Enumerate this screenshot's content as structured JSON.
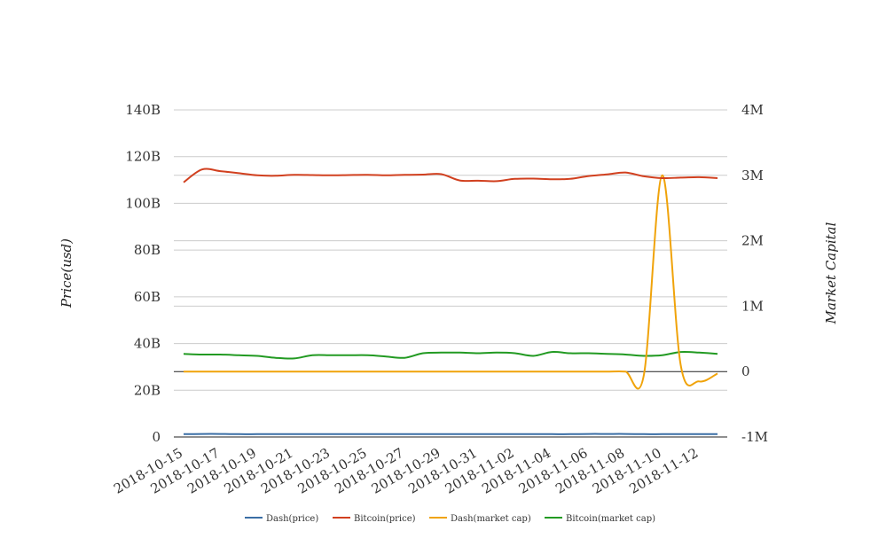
{
  "chart_data": {
    "type": "line",
    "title": "",
    "xlabel": "",
    "ylabel_left": "Price(usd)",
    "ylabel_right": "Market Capital",
    "ylim_left": [
      0,
      140000000000
    ],
    "ylim_right": [
      -1000000,
      4000000
    ],
    "left_ticks": [
      {
        "value": 0,
        "label": "0"
      },
      {
        "value": 20000000000,
        "label": "20B"
      },
      {
        "value": 40000000000,
        "label": "40B"
      },
      {
        "value": 60000000000,
        "label": "60B"
      },
      {
        "value": 80000000000,
        "label": "80B"
      },
      {
        "value": 100000000000,
        "label": "100B"
      },
      {
        "value": 120000000000,
        "label": "120B"
      },
      {
        "value": 140000000000,
        "label": "140B"
      }
    ],
    "right_ticks": [
      {
        "value": -1000000,
        "label": "-1M"
      },
      {
        "value": 0,
        "label": "0"
      },
      {
        "value": 1000000,
        "label": "1M"
      },
      {
        "value": 2000000,
        "label": "2M"
      },
      {
        "value": 3000000,
        "label": "3M"
      },
      {
        "value": 4000000,
        "label": "4M"
      }
    ],
    "x": [
      "2018-10-15",
      "2018-10-16",
      "2018-10-17",
      "2018-10-18",
      "2018-10-19",
      "2018-10-20",
      "2018-10-21",
      "2018-10-22",
      "2018-10-23",
      "2018-10-24",
      "2018-10-25",
      "2018-10-26",
      "2018-10-27",
      "2018-10-28",
      "2018-10-29",
      "2018-10-30",
      "2018-10-31",
      "2018-11-01",
      "2018-11-02",
      "2018-11-03",
      "2018-11-04",
      "2018-11-05",
      "2018-11-06",
      "2018-11-07",
      "2018-11-08",
      "2018-11-09",
      "2018-11-10",
      "2018-11-11",
      "2018-11-12",
      "2018-11-13"
    ],
    "x_tick_labels": [
      "2018-10-15",
      "2018-10-17",
      "2018-10-19",
      "2018-10-21",
      "2018-10-23",
      "2018-10-25",
      "2018-10-27",
      "2018-10-29",
      "2018-10-31",
      "2018-11-02",
      "2018-11-04",
      "2018-11-06",
      "2018-11-08",
      "2018-11-10",
      "2018-11-12"
    ],
    "grid": true,
    "legend_position": "bottom-center",
    "series": [
      {
        "name": "Dash(price)",
        "axis": "left",
        "color": "#3a6ea5",
        "values": [
          1200000000,
          1300000000,
          1300000000,
          1200000000,
          1200000000,
          1200000000,
          1200000000,
          1200000000,
          1200000000,
          1200000000,
          1200000000,
          1200000000,
          1200000000,
          1200000000,
          1200000000,
          1200000000,
          1200000000,
          1200000000,
          1200000000,
          1200000000,
          1200000000,
          1200000000,
          1300000000,
          1300000000,
          1300000000,
          1200000000,
          1200000000,
          1200000000,
          1200000000,
          1200000000
        ]
      },
      {
        "name": "Bitcoin(price)",
        "axis": "left",
        "color": "#d1401f",
        "values": [
          109000000000,
          114500000000,
          113800000000,
          112900000000,
          112000000000,
          111800000000,
          112200000000,
          112100000000,
          112000000000,
          112100000000,
          112200000000,
          112000000000,
          112200000000,
          112300000000,
          112500000000,
          109800000000,
          109700000000,
          109500000000,
          110500000000,
          110600000000,
          110300000000,
          110500000000,
          111700000000,
          112400000000,
          113200000000,
          111600000000,
          110800000000,
          111000000000,
          111200000000,
          110800000000
        ]
      },
      {
        "name": "Dash(market cap)",
        "axis": "right",
        "color": "#f0a30a",
        "values": [
          0,
          0,
          0,
          0,
          0,
          0,
          0,
          0,
          0,
          0,
          0,
          0,
          0,
          0,
          0,
          0,
          0,
          0,
          0,
          0,
          0,
          0,
          0,
          0,
          0,
          -50000,
          3000000,
          100000,
          -150000,
          -30000
        ]
      },
      {
        "name": "Bitcoin(market cap)",
        "axis": "right",
        "color": "#229a22",
        "values": [
          270000,
          260000,
          260000,
          250000,
          240000,
          210000,
          200000,
          250000,
          250000,
          250000,
          250000,
          230000,
          210000,
          280000,
          290000,
          290000,
          280000,
          290000,
          280000,
          240000,
          300000,
          280000,
          280000,
          270000,
          260000,
          240000,
          250000,
          300000,
          290000,
          270000
        ]
      }
    ]
  }
}
